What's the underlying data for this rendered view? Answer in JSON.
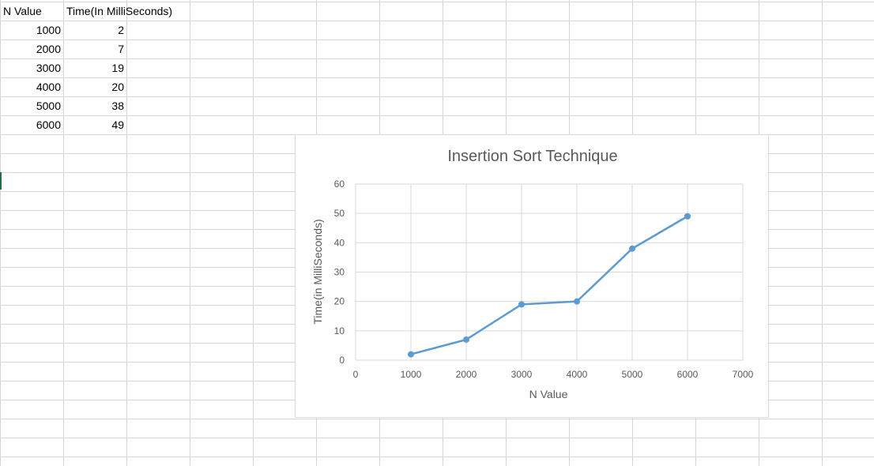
{
  "sheet": {
    "headers": [
      "N Value",
      "Time(In MilliSeconds)"
    ],
    "rows": [
      {
        "n": "1000",
        "time": "2"
      },
      {
        "n": "2000",
        "time": "7"
      },
      {
        "n": "3000",
        "time": "19"
      },
      {
        "n": "4000",
        "time": "20"
      },
      {
        "n": "5000",
        "time": "38"
      },
      {
        "n": "6000",
        "time": "49"
      }
    ]
  },
  "colors": {
    "series": "#5b9bd5",
    "gridline": "#d9d9d9",
    "axis_text": "#595959",
    "sheet_grid": "#d4d4d4",
    "active_cell": "#217346"
  },
  "chart_data": {
    "type": "scatter",
    "title": "Insertion Sort Technique",
    "xlabel": "N Value",
    "ylabel": "Time(in MilliSeconds)",
    "xlim": [
      0,
      7000
    ],
    "ylim": [
      0,
      60
    ],
    "xticks": [
      0,
      1000,
      2000,
      3000,
      4000,
      5000,
      6000,
      7000
    ],
    "yticks": [
      0,
      10,
      20,
      30,
      40,
      50,
      60
    ],
    "grid": true,
    "legend": "none",
    "series": [
      {
        "x": [
          1000,
          2000,
          3000,
          4000,
          5000,
          6000
        ],
        "y": [
          2,
          7,
          19,
          20,
          38,
          49
        ],
        "style": "lines-and-markers"
      }
    ]
  }
}
